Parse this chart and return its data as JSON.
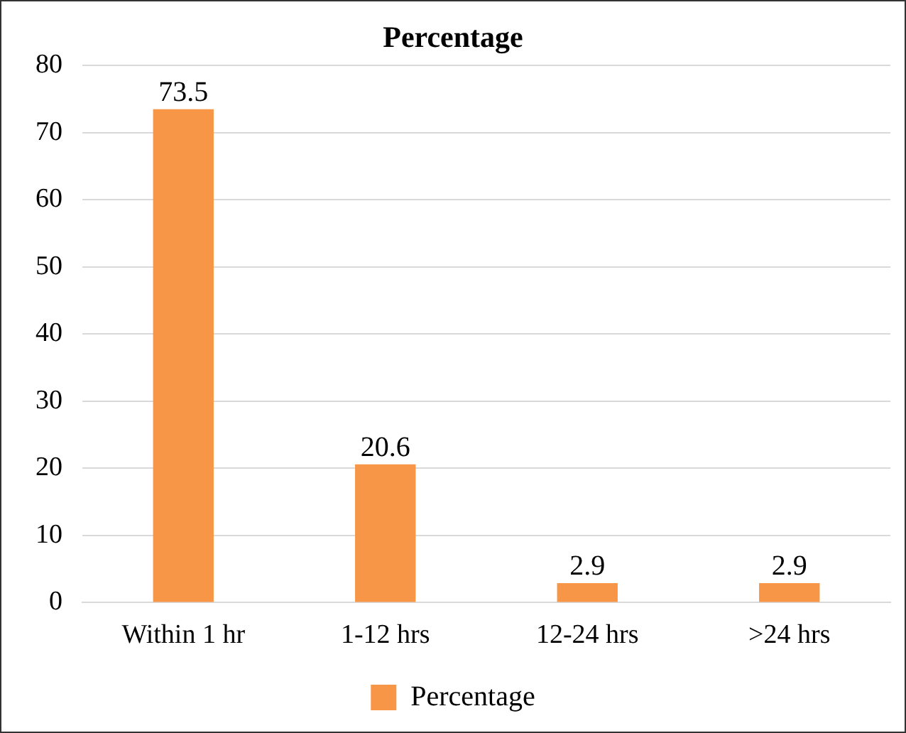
{
  "chart_data": {
    "type": "bar",
    "title": "Percentage",
    "categories": [
      "Within 1 hr",
      "1-12 hrs",
      "12-24 hrs",
      ">24 hrs"
    ],
    "series": [
      {
        "name": "Percentage",
        "color": "#f79646",
        "values": [
          73.5,
          20.6,
          2.9,
          2.9
        ]
      }
    ],
    "ylim": [
      0,
      80
    ],
    "yticks": [
      0,
      10,
      20,
      30,
      40,
      50,
      60,
      70,
      80
    ],
    "grid": "y",
    "data_labels": true,
    "legend": "bottom"
  }
}
